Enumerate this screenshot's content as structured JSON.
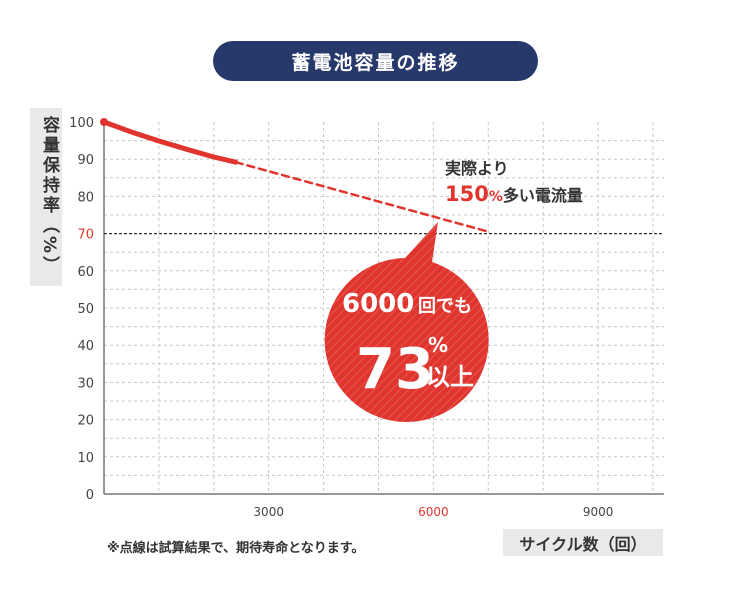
{
  "title": "蓄電池容量の推移",
  "y_axis_title": "容量保持率（%）",
  "x_axis_title": "サイクル数（回）",
  "footnote": "※点線は試算結果で、期待寿命となります。",
  "annotation": {
    "line1": "実際より",
    "number": "150",
    "percent": "%",
    "line2_rest": "多い電流量"
  },
  "bubble": {
    "count": "6000",
    "count_unit": "回でも",
    "percent_value": "73",
    "percent_sign": "%",
    "suffix": "以上"
  },
  "colors": {
    "accent": "#e0352f",
    "title_bg": "#27386b",
    "grid": "#c8c8c8"
  },
  "chart_data": {
    "type": "line",
    "xlim": [
      0,
      10200
    ],
    "ylim": [
      0,
      100
    ],
    "x_ticks": [
      {
        "value": 3000,
        "label": "3000",
        "highlight": false
      },
      {
        "value": 6000,
        "label": "6000",
        "highlight": true
      },
      {
        "value": 9000,
        "label": "9000",
        "highlight": false
      }
    ],
    "y_ticks": [
      {
        "value": 100,
        "label": "100",
        "highlight": false
      },
      {
        "value": 90,
        "label": "90",
        "highlight": false
      },
      {
        "value": 80,
        "label": "80",
        "highlight": false
      },
      {
        "value": 70,
        "label": "70",
        "highlight": true
      },
      {
        "value": 60,
        "label": "60",
        "highlight": false
      },
      {
        "value": 50,
        "label": "50",
        "highlight": false
      },
      {
        "value": 40,
        "label": "40",
        "highlight": false
      },
      {
        "value": 30,
        "label": "30",
        "highlight": false
      },
      {
        "value": 20,
        "label": "20",
        "highlight": false
      },
      {
        "value": 10,
        "label": "10",
        "highlight": false
      },
      {
        "value": 0,
        "label": "0",
        "highlight": false
      }
    ],
    "grid": true,
    "reference_line_y": 70,
    "series": [
      {
        "style": "solid",
        "points": [
          [
            0,
            100
          ],
          [
            500,
            97.3
          ],
          [
            1000,
            94.9
          ],
          [
            1500,
            92.7
          ],
          [
            2000,
            90.6
          ],
          [
            2400,
            89.2
          ]
        ]
      },
      {
        "style": "dashed",
        "points": [
          [
            2400,
            89.2
          ],
          [
            7000,
            70.5
          ]
        ]
      }
    ]
  }
}
